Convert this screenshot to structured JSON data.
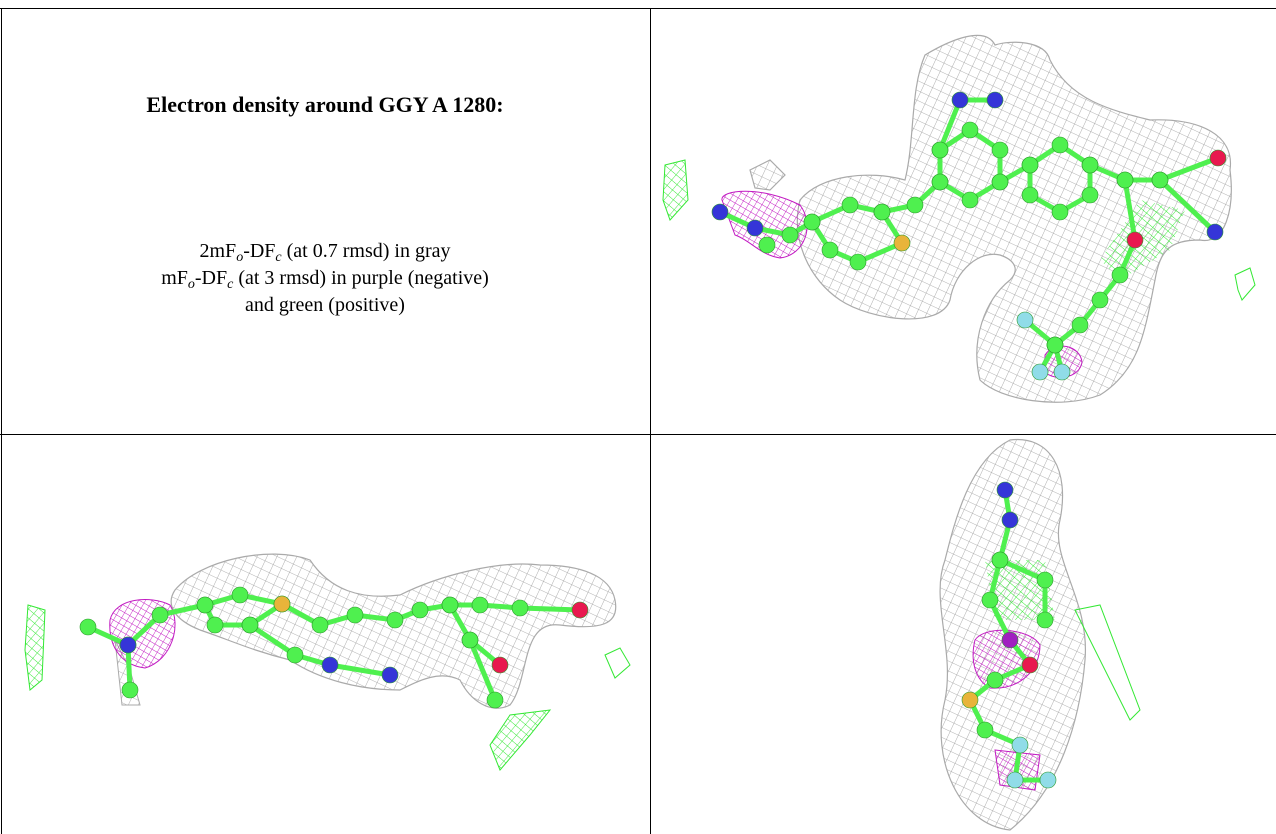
{
  "caption": {
    "title": "Electron density around GGY A 1280:",
    "lines": [
      [
        "2mF",
        "o",
        "-DF",
        "c",
        " (at 0.7 rmsd) in gray"
      ],
      [
        "mF",
        "o",
        "-DF",
        "c",
        " (at 3 rmsd) in purple (negative)"
      ],
      [
        "and green (positive)"
      ]
    ]
  }
}
